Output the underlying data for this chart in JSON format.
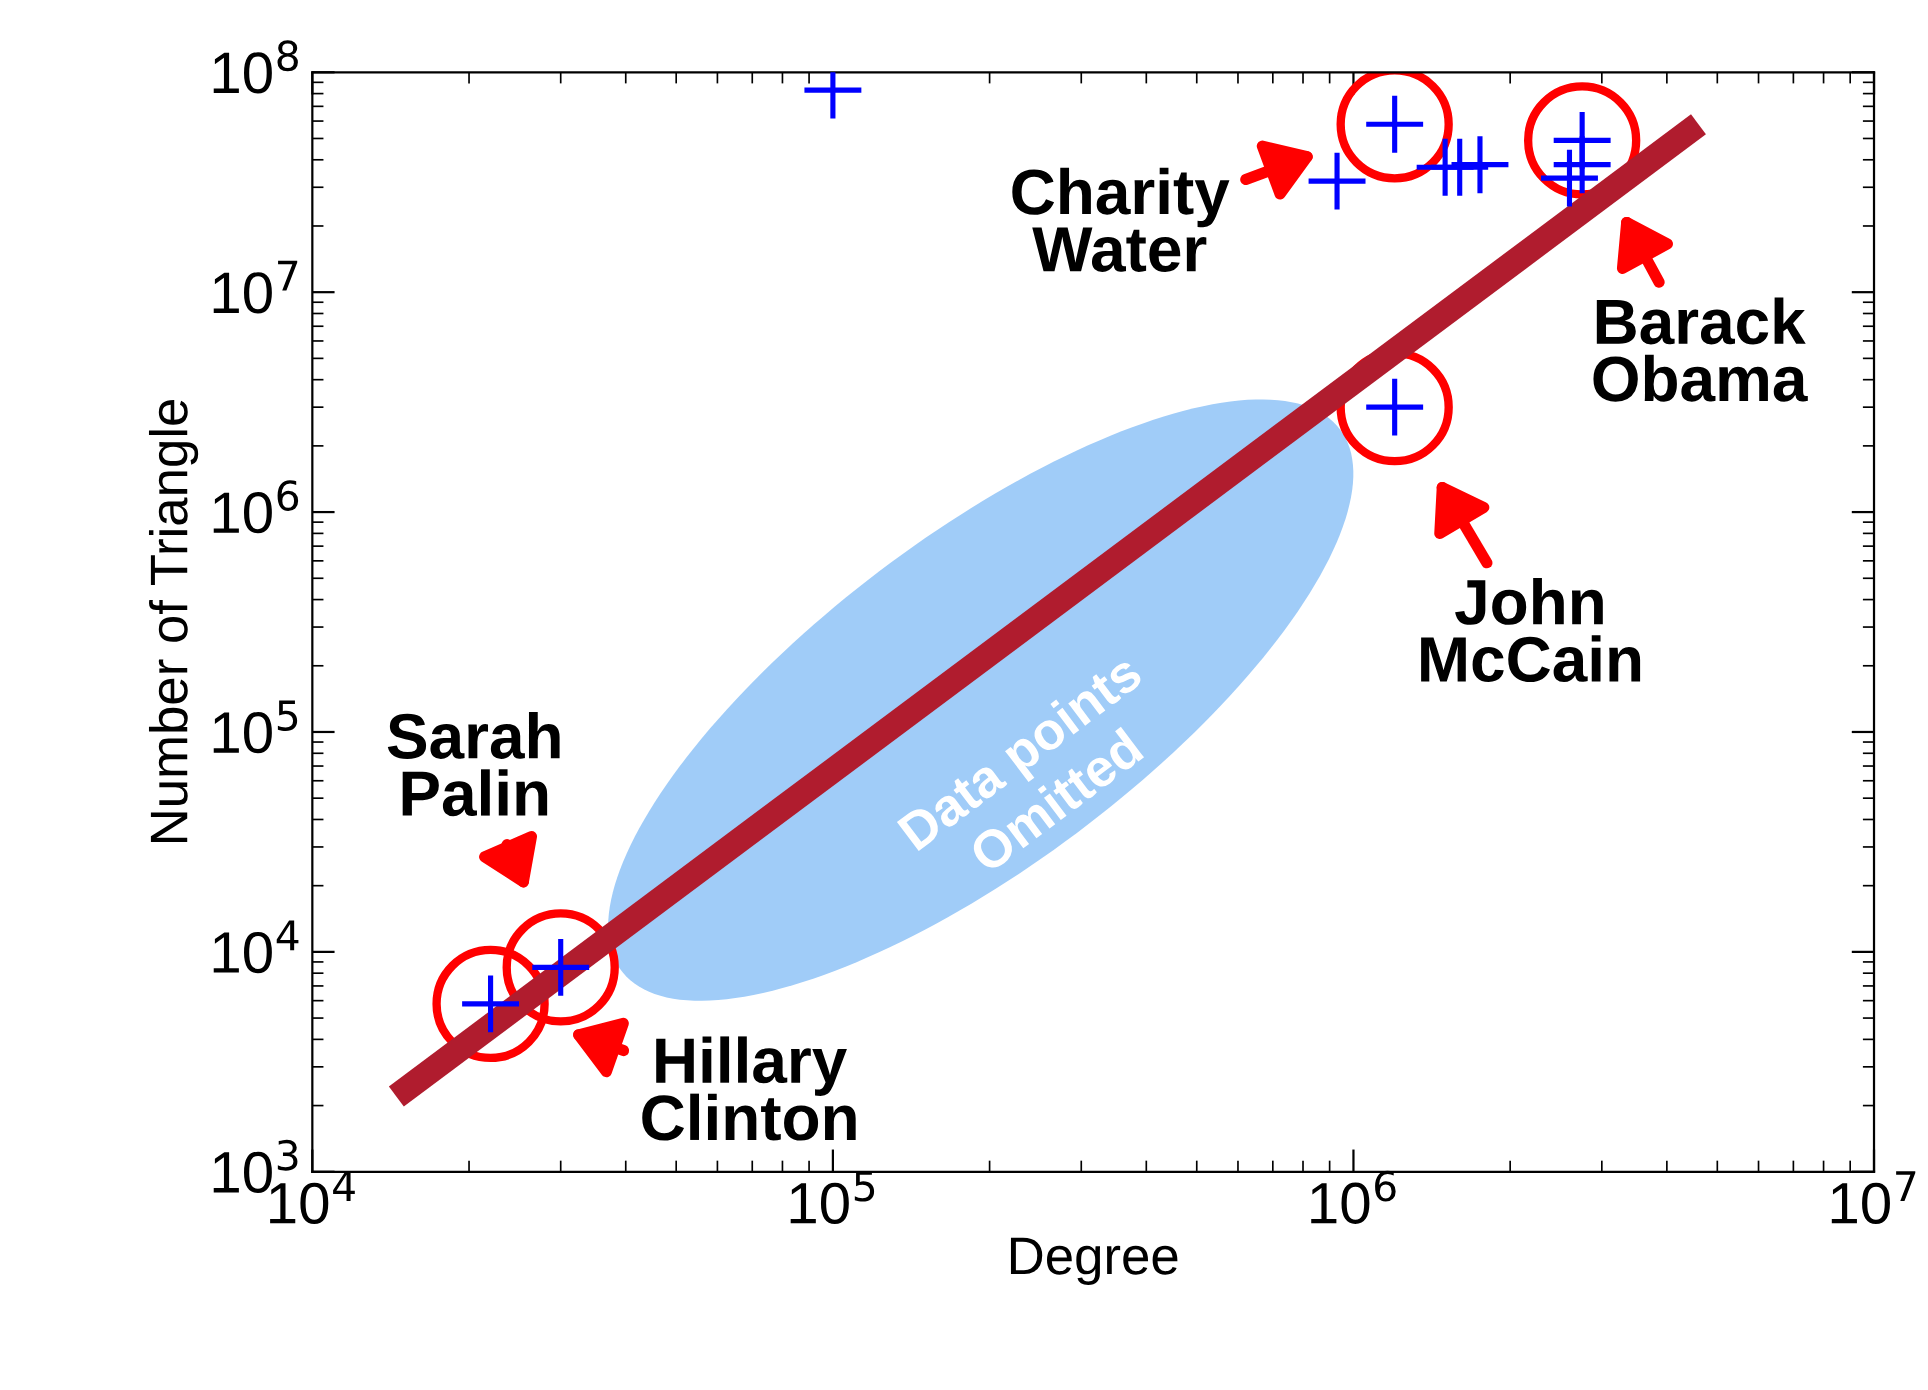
{
  "chart_data": {
    "type": "scatter",
    "xlabel": "Degree",
    "ylabel": "Number of Triangle",
    "log": "xy",
    "xlim": [
      10000,
      10000000
    ],
    "ylim": [
      1000,
      100000000
    ],
    "xticks": [
      {
        "value": 10000,
        "label": "10$^{4}$"
      },
      {
        "value": 100000,
        "label": "10$^{5}$"
      },
      {
        "value": 1000000,
        "label": "10$^{6}$"
      },
      {
        "value": 10000000,
        "label": "10$^{7}$"
      }
    ],
    "yticks": [
      {
        "value": 1000,
        "label": "10$^{3}$"
      },
      {
        "value": 10000,
        "label": "10$^{4}$"
      },
      {
        "value": 100000,
        "label": "10$^{5}$"
      },
      {
        "value": 1000000,
        "label": "10$^{6}$"
      },
      {
        "value": 10000000,
        "label": "10$^{7}$"
      },
      {
        "value": 100000000,
        "label": "10$^{8}$"
      }
    ],
    "grid": false,
    "series": [
      {
        "marker": "cross",
        "color": "#0000ff",
        "x": [
          22000,
          30000,
          1200000,
          1200000,
          930000,
          1500000,
          1600000,
          1750000,
          2750000,
          2750000,
          2600000,
          100000
        ],
        "values": [
          5800,
          8500,
          3000000,
          58000000,
          32000000,
          37000000,
          37000000,
          38000000,
          49000000,
          38000000,
          33000000,
          83000000
        ]
      },
      {
        "type": "line",
        "color": "#b01c2e",
        "x": [
          14500,
          4600000
        ],
        "values": [
          2200,
          58000000
        ]
      }
    ],
    "annotations": [
      {
        "text": "Sarah\nPalin",
        "x": 30000,
        "y": 8500
      },
      {
        "text": "Hillary\nClinton",
        "x": 22000,
        "y": 5800
      },
      {
        "text": "Charity\nWater",
        "x": 1200000,
        "y": 58000000
      },
      {
        "text": "Barack\nObama",
        "x": 2750000,
        "y": 49000000
      },
      {
        "text": "John\nMcCain",
        "x": 1200000,
        "y": 3000000
      },
      "Data points\nOmitted"
    ]
  }
}
